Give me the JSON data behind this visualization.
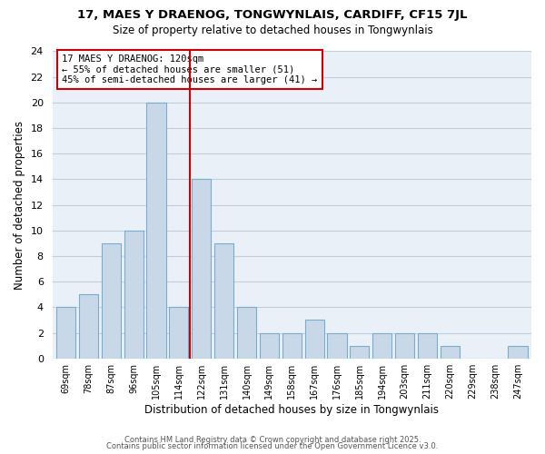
{
  "title": "17, MAES Y DRAENOG, TONGWYNLAIS, CARDIFF, CF15 7JL",
  "subtitle": "Size of property relative to detached houses in Tongwynlais",
  "xlabel": "Distribution of detached houses by size in Tongwynlais",
  "ylabel": "Number of detached properties",
  "bar_labels": [
    "69sqm",
    "78sqm",
    "87sqm",
    "96sqm",
    "105sqm",
    "114sqm",
    "122sqm",
    "131sqm",
    "140sqm",
    "149sqm",
    "158sqm",
    "167sqm",
    "176sqm",
    "185sqm",
    "194sqm",
    "203sqm",
    "211sqm",
    "220sqm",
    "229sqm",
    "238sqm",
    "247sqm"
  ],
  "bar_values": [
    4,
    5,
    9,
    10,
    20,
    4,
    14,
    9,
    4,
    2,
    2,
    3,
    2,
    1,
    2,
    2,
    2,
    1,
    0,
    0,
    1
  ],
  "bar_color": "#c8d8e8",
  "bar_edgecolor": "#7aadcc",
  "ax_facecolor": "#eaf0f8",
  "ylim": [
    0,
    24
  ],
  "yticks": [
    0,
    2,
    4,
    6,
    8,
    10,
    12,
    14,
    16,
    18,
    20,
    22,
    24
  ],
  "vline_x": 5.5,
  "vline_color": "#cc0000",
  "annotation_title": "17 MAES Y DRAENOG: 120sqm",
  "annotation_line1": "← 55% of detached houses are smaller (51)",
  "annotation_line2": "45% of semi-detached houses are larger (41) →",
  "footer1": "Contains HM Land Registry data © Crown copyright and database right 2025.",
  "footer2": "Contains public sector information licensed under the Open Government Licence v3.0.",
  "background_color": "#ffffff",
  "grid_color": "#c0cfe0"
}
